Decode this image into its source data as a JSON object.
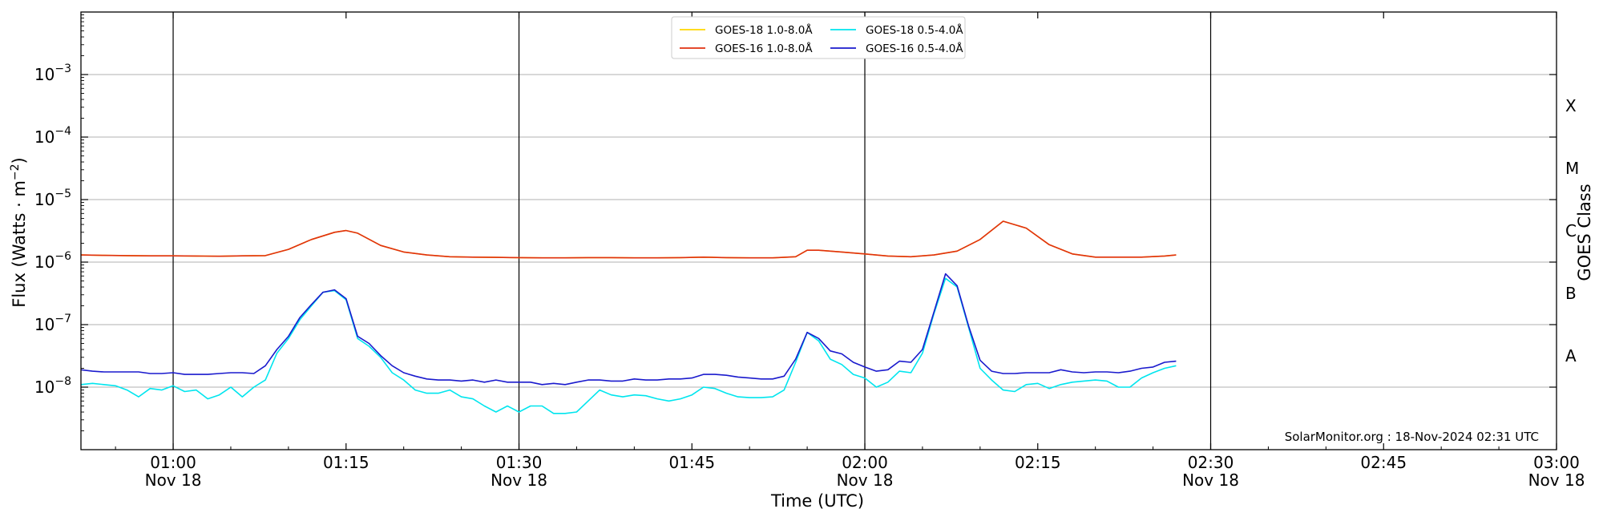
{
  "chart_data": {
    "type": "line",
    "xlabel": "Time (UTC)",
    "ylabel": "Flux (Watts · m",
    "ylabel_sup": "−2",
    "ylabel_close": ")",
    "right_label": "GOES Class",
    "x_range": [
      "00:52",
      "03:00"
    ],
    "x_start_hour": 0.8667,
    "x_end_hour": 3.0,
    "y_scale": "log",
    "ylim": [
      1e-09,
      0.01
    ],
    "grid": "horizontal at decades",
    "x_ticks": [
      {
        "hour": 1.0,
        "time": "01:00",
        "date": "Nov 18",
        "major": true
      },
      {
        "hour": 1.25,
        "time": "01:15",
        "date": "",
        "major": false
      },
      {
        "hour": 1.5,
        "time": "01:30",
        "date": "Nov 18",
        "major": true
      },
      {
        "hour": 1.75,
        "time": "01:45",
        "date": "",
        "major": false
      },
      {
        "hour": 2.0,
        "time": "02:00",
        "date": "Nov 18",
        "major": true
      },
      {
        "hour": 2.25,
        "time": "02:15",
        "date": "",
        "major": false
      },
      {
        "hour": 2.5,
        "time": "02:30",
        "date": "Nov 18",
        "major": true
      },
      {
        "hour": 2.75,
        "time": "02:45",
        "date": "",
        "major": false
      },
      {
        "hour": 3.0,
        "time": "03:00",
        "date": "Nov 18",
        "major": true
      }
    ],
    "y_ticks": [
      {
        "exp": -8,
        "base": "10",
        "sup": "−8"
      },
      {
        "exp": -7,
        "base": "10",
        "sup": "−7"
      },
      {
        "exp": -6,
        "base": "10",
        "sup": "−6"
      },
      {
        "exp": -5,
        "base": "10",
        "sup": "−5"
      },
      {
        "exp": -4,
        "base": "10",
        "sup": "−4"
      },
      {
        "exp": -3,
        "base": "10",
        "sup": "−3"
      }
    ],
    "goes_classes": [
      {
        "label": "A",
        "exp": -7.5
      },
      {
        "label": "B",
        "exp": -6.5
      },
      {
        "label": "C",
        "exp": -5.5
      },
      {
        "label": "M",
        "exp": -4.5
      },
      {
        "label": "X",
        "exp": -3.5
      }
    ],
    "legend": {
      "placement": "top-center",
      "columns": 2
    },
    "credit": "SolarMonitor.org : 18-Nov-2024 02:31 UTC",
    "series": [
      {
        "name": "GOES-18 1.0-8.0Å",
        "color": "#ffd700",
        "minutes": [
          52,
          54,
          56,
          58,
          60,
          62,
          64,
          66,
          68,
          70,
          72,
          74,
          75,
          76,
          78,
          80,
          82,
          84,
          86,
          88,
          90,
          92,
          94,
          96,
          98,
          100,
          102,
          104,
          106,
          108,
          110,
          112,
          114,
          115,
          116,
          118,
          120,
          122,
          124,
          126,
          128,
          130,
          132,
          134,
          136,
          138,
          140,
          142,
          144,
          146,
          147
        ],
        "values": [
          1.3e-06,
          1.28e-06,
          1.27e-06,
          1.26e-06,
          1.26e-06,
          1.25e-06,
          1.24e-06,
          1.26e-06,
          1.27e-06,
          1.6e-06,
          2.3e-06,
          3e-06,
          3.2e-06,
          2.9e-06,
          1.85e-06,
          1.45e-06,
          1.3e-06,
          1.22e-06,
          1.2e-06,
          1.19e-06,
          1.18e-06,
          1.17e-06,
          1.17e-06,
          1.18e-06,
          1.18e-06,
          1.17e-06,
          1.17e-06,
          1.18e-06,
          1.2e-06,
          1.18e-06,
          1.17e-06,
          1.17e-06,
          1.22e-06,
          1.55e-06,
          1.55e-06,
          1.45e-06,
          1.35e-06,
          1.25e-06,
          1.22e-06,
          1.3e-06,
          1.5e-06,
          2.3e-06,
          4.5e-06,
          3.5e-06,
          1.9e-06,
          1.35e-06,
          1.2e-06,
          1.2e-06,
          1.2e-06,
          1.25e-06,
          1.3e-06
        ]
      },
      {
        "name": "GOES-16 1.0-8.0Å",
        "color": "#e03010",
        "minutes": [
          52,
          54,
          56,
          58,
          60,
          62,
          64,
          66,
          68,
          70,
          72,
          74,
          75,
          76,
          78,
          80,
          82,
          84,
          86,
          88,
          90,
          92,
          94,
          96,
          98,
          100,
          102,
          104,
          106,
          108,
          110,
          112,
          114,
          115,
          116,
          118,
          120,
          122,
          124,
          126,
          128,
          130,
          132,
          134,
          136,
          138,
          140,
          142,
          144,
          146,
          147
        ],
        "values": [
          1.3e-06,
          1.28e-06,
          1.27e-06,
          1.26e-06,
          1.26e-06,
          1.25e-06,
          1.24e-06,
          1.26e-06,
          1.27e-06,
          1.6e-06,
          2.3e-06,
          3e-06,
          3.2e-06,
          2.9e-06,
          1.85e-06,
          1.45e-06,
          1.3e-06,
          1.22e-06,
          1.2e-06,
          1.19e-06,
          1.18e-06,
          1.17e-06,
          1.17e-06,
          1.18e-06,
          1.18e-06,
          1.17e-06,
          1.17e-06,
          1.18e-06,
          1.2e-06,
          1.18e-06,
          1.17e-06,
          1.17e-06,
          1.22e-06,
          1.55e-06,
          1.55e-06,
          1.45e-06,
          1.35e-06,
          1.25e-06,
          1.22e-06,
          1.3e-06,
          1.5e-06,
          2.3e-06,
          4.5e-06,
          3.5e-06,
          1.9e-06,
          1.35e-06,
          1.2e-06,
          1.2e-06,
          1.2e-06,
          1.25e-06,
          1.3e-06
        ]
      },
      {
        "name": "GOES-18 0.5-4.0Å",
        "color": "#00e5ee",
        "minutes": [
          52,
          53,
          54,
          55,
          56,
          57,
          58,
          59,
          60,
          61,
          62,
          63,
          64,
          65,
          66,
          67,
          68,
          69,
          70,
          71,
          72,
          73,
          74,
          75,
          76,
          77,
          78,
          79,
          80,
          81,
          82,
          83,
          84,
          85,
          86,
          87,
          88,
          89,
          90,
          91,
          92,
          93,
          94,
          95,
          96,
          97,
          98,
          99,
          100,
          101,
          102,
          103,
          104,
          105,
          106,
          107,
          108,
          109,
          110,
          111,
          112,
          113,
          114,
          115,
          116,
          117,
          118,
          119,
          120,
          121,
          122,
          123,
          124,
          125,
          126,
          127,
          128,
          129,
          130,
          131,
          132,
          133,
          134,
          135,
          136,
          137,
          138,
          139,
          140,
          141,
          142,
          143,
          144,
          145,
          146,
          147
        ],
        "values": [
          1.1e-08,
          1.15e-08,
          1.1e-08,
          1.05e-08,
          9e-09,
          7e-09,
          9.5e-09,
          9e-09,
          1.05e-08,
          8.5e-09,
          9e-09,
          6.5e-09,
          7.5e-09,
          1e-08,
          7e-09,
          1e-08,
          1.3e-08,
          3.5e-08,
          6e-08,
          1.2e-07,
          2e-07,
          3.3e-07,
          3.5e-07,
          2.5e-07,
          6e-08,
          4.5e-08,
          3e-08,
          1.7e-08,
          1.3e-08,
          9e-09,
          8e-09,
          8e-09,
          9e-09,
          7e-09,
          6.5e-09,
          5e-09,
          4e-09,
          5e-09,
          4e-09,
          5e-09,
          5e-09,
          3.8e-09,
          3.8e-09,
          4e-09,
          6e-09,
          9e-09,
          7.5e-09,
          7e-09,
          7.5e-09,
          7.3e-09,
          6.5e-09,
          6e-09,
          6.5e-09,
          7.5e-09,
          1e-08,
          9.5e-09,
          8e-09,
          7e-09,
          6.8e-09,
          6.8e-09,
          7e-09,
          9e-09,
          2.5e-08,
          7.5e-08,
          5.5e-08,
          2.8e-08,
          2.3e-08,
          1.6e-08,
          1.4e-08,
          1e-08,
          1.2e-08,
          1.8e-08,
          1.7e-08,
          3.5e-08,
          1.5e-07,
          5.5e-07,
          4e-07,
          9e-08,
          2e-08,
          1.3e-08,
          9e-09,
          8.5e-09,
          1.1e-08,
          1.15e-08,
          9.5e-09,
          1.1e-08,
          1.2e-08,
          1.25e-08,
          1.3e-08,
          1.25e-08,
          1e-08,
          1e-08,
          1.4e-08,
          1.7e-08,
          2e-08,
          2.2e-08
        ]
      },
      {
        "name": "GOES-16 0.5-4.0Å",
        "color": "#1a1acd",
        "minutes": [
          52,
          53,
          54,
          55,
          56,
          57,
          58,
          59,
          60,
          61,
          62,
          63,
          64,
          65,
          66,
          67,
          68,
          69,
          70,
          71,
          72,
          73,
          74,
          75,
          76,
          77,
          78,
          79,
          80,
          81,
          82,
          83,
          84,
          85,
          86,
          87,
          88,
          89,
          90,
          91,
          92,
          93,
          94,
          95,
          96,
          97,
          98,
          99,
          100,
          101,
          102,
          103,
          104,
          105,
          106,
          107,
          108,
          109,
          110,
          111,
          112,
          113,
          114,
          115,
          116,
          117,
          118,
          119,
          120,
          121,
          122,
          123,
          124,
          125,
          126,
          127,
          128,
          129,
          130,
          131,
          132,
          133,
          134,
          135,
          136,
          137,
          138,
          139,
          140,
          141,
          142,
          143,
          144,
          145,
          146,
          147
        ],
        "values": [
          1.9e-08,
          1.8e-08,
          1.75e-08,
          1.75e-08,
          1.75e-08,
          1.75e-08,
          1.65e-08,
          1.65e-08,
          1.7e-08,
          1.6e-08,
          1.6e-08,
          1.6e-08,
          1.65e-08,
          1.7e-08,
          1.7e-08,
          1.65e-08,
          2.2e-08,
          4e-08,
          6.5e-08,
          1.3e-07,
          2.1e-07,
          3.3e-07,
          3.6e-07,
          2.6e-07,
          6.5e-08,
          5e-08,
          3.2e-08,
          2.2e-08,
          1.7e-08,
          1.5e-08,
          1.35e-08,
          1.3e-08,
          1.3e-08,
          1.25e-08,
          1.3e-08,
          1.2e-08,
          1.3e-08,
          1.2e-08,
          1.2e-08,
          1.2e-08,
          1.1e-08,
          1.15e-08,
          1.1e-08,
          1.2e-08,
          1.3e-08,
          1.3e-08,
          1.25e-08,
          1.25e-08,
          1.35e-08,
          1.3e-08,
          1.3e-08,
          1.35e-08,
          1.35e-08,
          1.4e-08,
          1.6e-08,
          1.6e-08,
          1.55e-08,
          1.45e-08,
          1.4e-08,
          1.35e-08,
          1.35e-08,
          1.5e-08,
          2.8e-08,
          7.5e-08,
          6e-08,
          3.8e-08,
          3.4e-08,
          2.5e-08,
          2.1e-08,
          1.8e-08,
          1.9e-08,
          2.6e-08,
          2.5e-08,
          4e-08,
          1.6e-07,
          6.5e-07,
          4.2e-07,
          9.5e-08,
          2.7e-08,
          1.8e-08,
          1.65e-08,
          1.65e-08,
          1.7e-08,
          1.7e-08,
          1.7e-08,
          1.9e-08,
          1.75e-08,
          1.7e-08,
          1.75e-08,
          1.75e-08,
          1.7e-08,
          1.8e-08,
          2e-08,
          2.1e-08,
          2.5e-08,
          2.6e-08
        ]
      }
    ]
  }
}
